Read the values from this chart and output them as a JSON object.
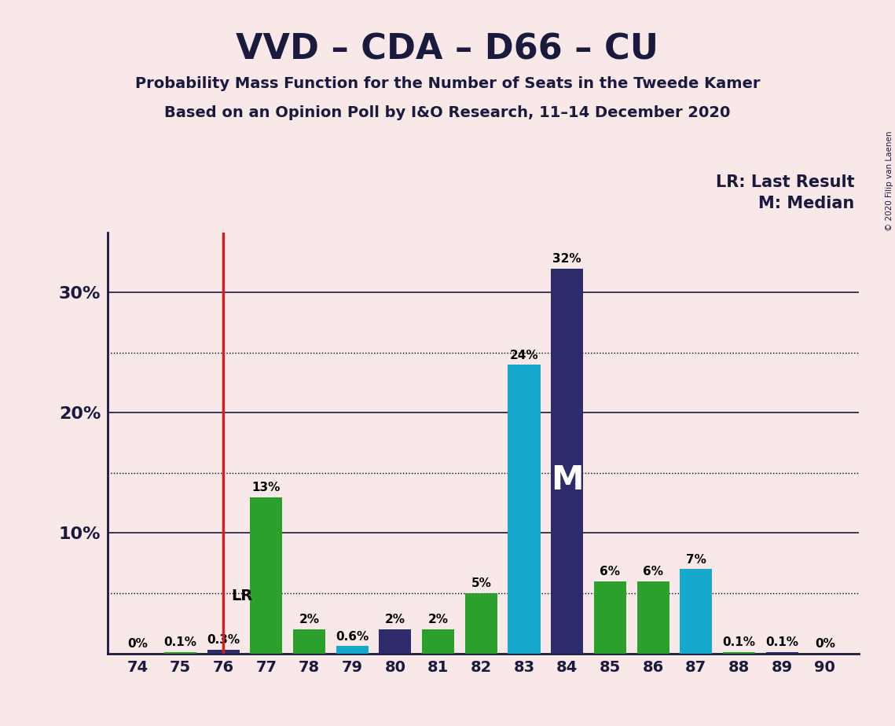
{
  "title": "VVD – CDA – D66 – CU",
  "subtitle1": "Probability Mass Function for the Number of Seats in the Tweede Kamer",
  "subtitle2": "Based on an Opinion Poll by I&O Research, 11–14 December 2020",
  "copyright": "© 2020 Filip van Laenen",
  "seats": [
    74,
    75,
    76,
    77,
    78,
    79,
    80,
    81,
    82,
    83,
    84,
    85,
    86,
    87,
    88,
    89,
    90
  ],
  "values": [
    0.0,
    0.1,
    0.3,
    13,
    2,
    0.6,
    2,
    2,
    5,
    24,
    32,
    6,
    6,
    7,
    0.1,
    0.1,
    0.0
  ],
  "colors": [
    "#2ca02c",
    "#2ca02c",
    "#2d2b6b",
    "#2ca02c",
    "#2ca02c",
    "#17a8cd",
    "#2d2b6b",
    "#2ca02c",
    "#2ca02c",
    "#17a8cd",
    "#2d2b6b",
    "#2ca02c",
    "#2ca02c",
    "#17a8cd",
    "#2ca02c",
    "#2d2b6b",
    "#2ca02c"
  ],
  "lr_seat": 76,
  "median_seat": 84,
  "background_color": "#f9e8e8",
  "legend_lr": "LR: Last Result",
  "legend_m": "M: Median",
  "ylim": [
    0,
    35
  ],
  "gridlines_solid": [
    10,
    20,
    30
  ],
  "gridlines_dotted": [
    5,
    15,
    25
  ],
  "bar_width": 0.75
}
